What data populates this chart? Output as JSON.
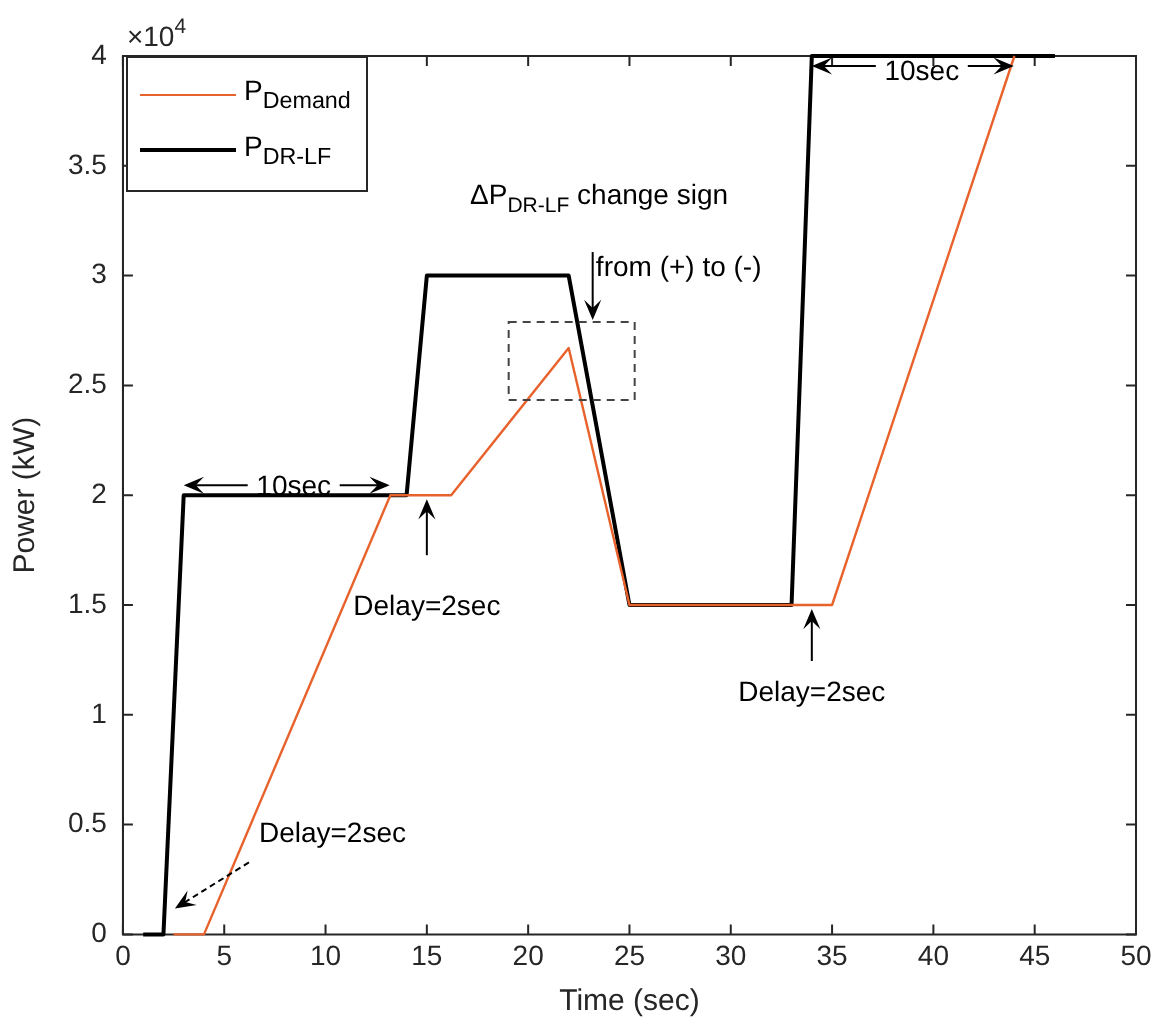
{
  "chart_data": {
    "type": "line",
    "xlabel": "Time (sec)",
    "ylabel": "Power (kW)",
    "xlim": [
      0,
      50
    ],
    "xticks": [
      0,
      5,
      10,
      15,
      20,
      25,
      30,
      35,
      40,
      45,
      50
    ],
    "ylim": [
      0,
      4
    ],
    "yticks": [
      0,
      0.5,
      1,
      1.5,
      2,
      2.5,
      3,
      3.5,
      4
    ],
    "grid": false,
    "legend": "top left",
    "marker": "none",
    "line_style": "solid",
    "series": [
      {
        "name": "P$_{Demand}$",
        "color": "#e8622c",
        "x": [
          2.5,
          4,
          13.2,
          16.2,
          22,
          25,
          35,
          44
        ],
        "values": [
          0,
          0,
          2,
          2,
          2.67,
          1.5,
          1.5,
          4
        ]
      },
      {
        "name": "P$_{DR-LF}$",
        "color": "#000000",
        "x": [
          1,
          2,
          3,
          14,
          15,
          22,
          25,
          33,
          34,
          46
        ],
        "values": [
          0,
          0,
          2,
          2,
          3,
          3,
          1.5,
          1.5,
          4,
          4
        ]
      }
    ],
    "annotations": [
      "×10$^{4}$",
      {
        "text": "10sec",
        "x": 3,
        "y": 2
      },
      {
        "text": "Delay=2sec",
        "x": 15,
        "y": 2
      },
      "Delay=2sec",
      {
        "text": "Delay=2sec",
        "x": 34,
        "y": 1.5
      },
      {
        "text": "10sec",
        "x": 34,
        "y": 4
      },
      "ΔP$_{DR-LF}$ change sign",
      {
        "text": "from (+) to (-)",
        "x": 22,
        "y": 2.67
      }
    ]
  }
}
